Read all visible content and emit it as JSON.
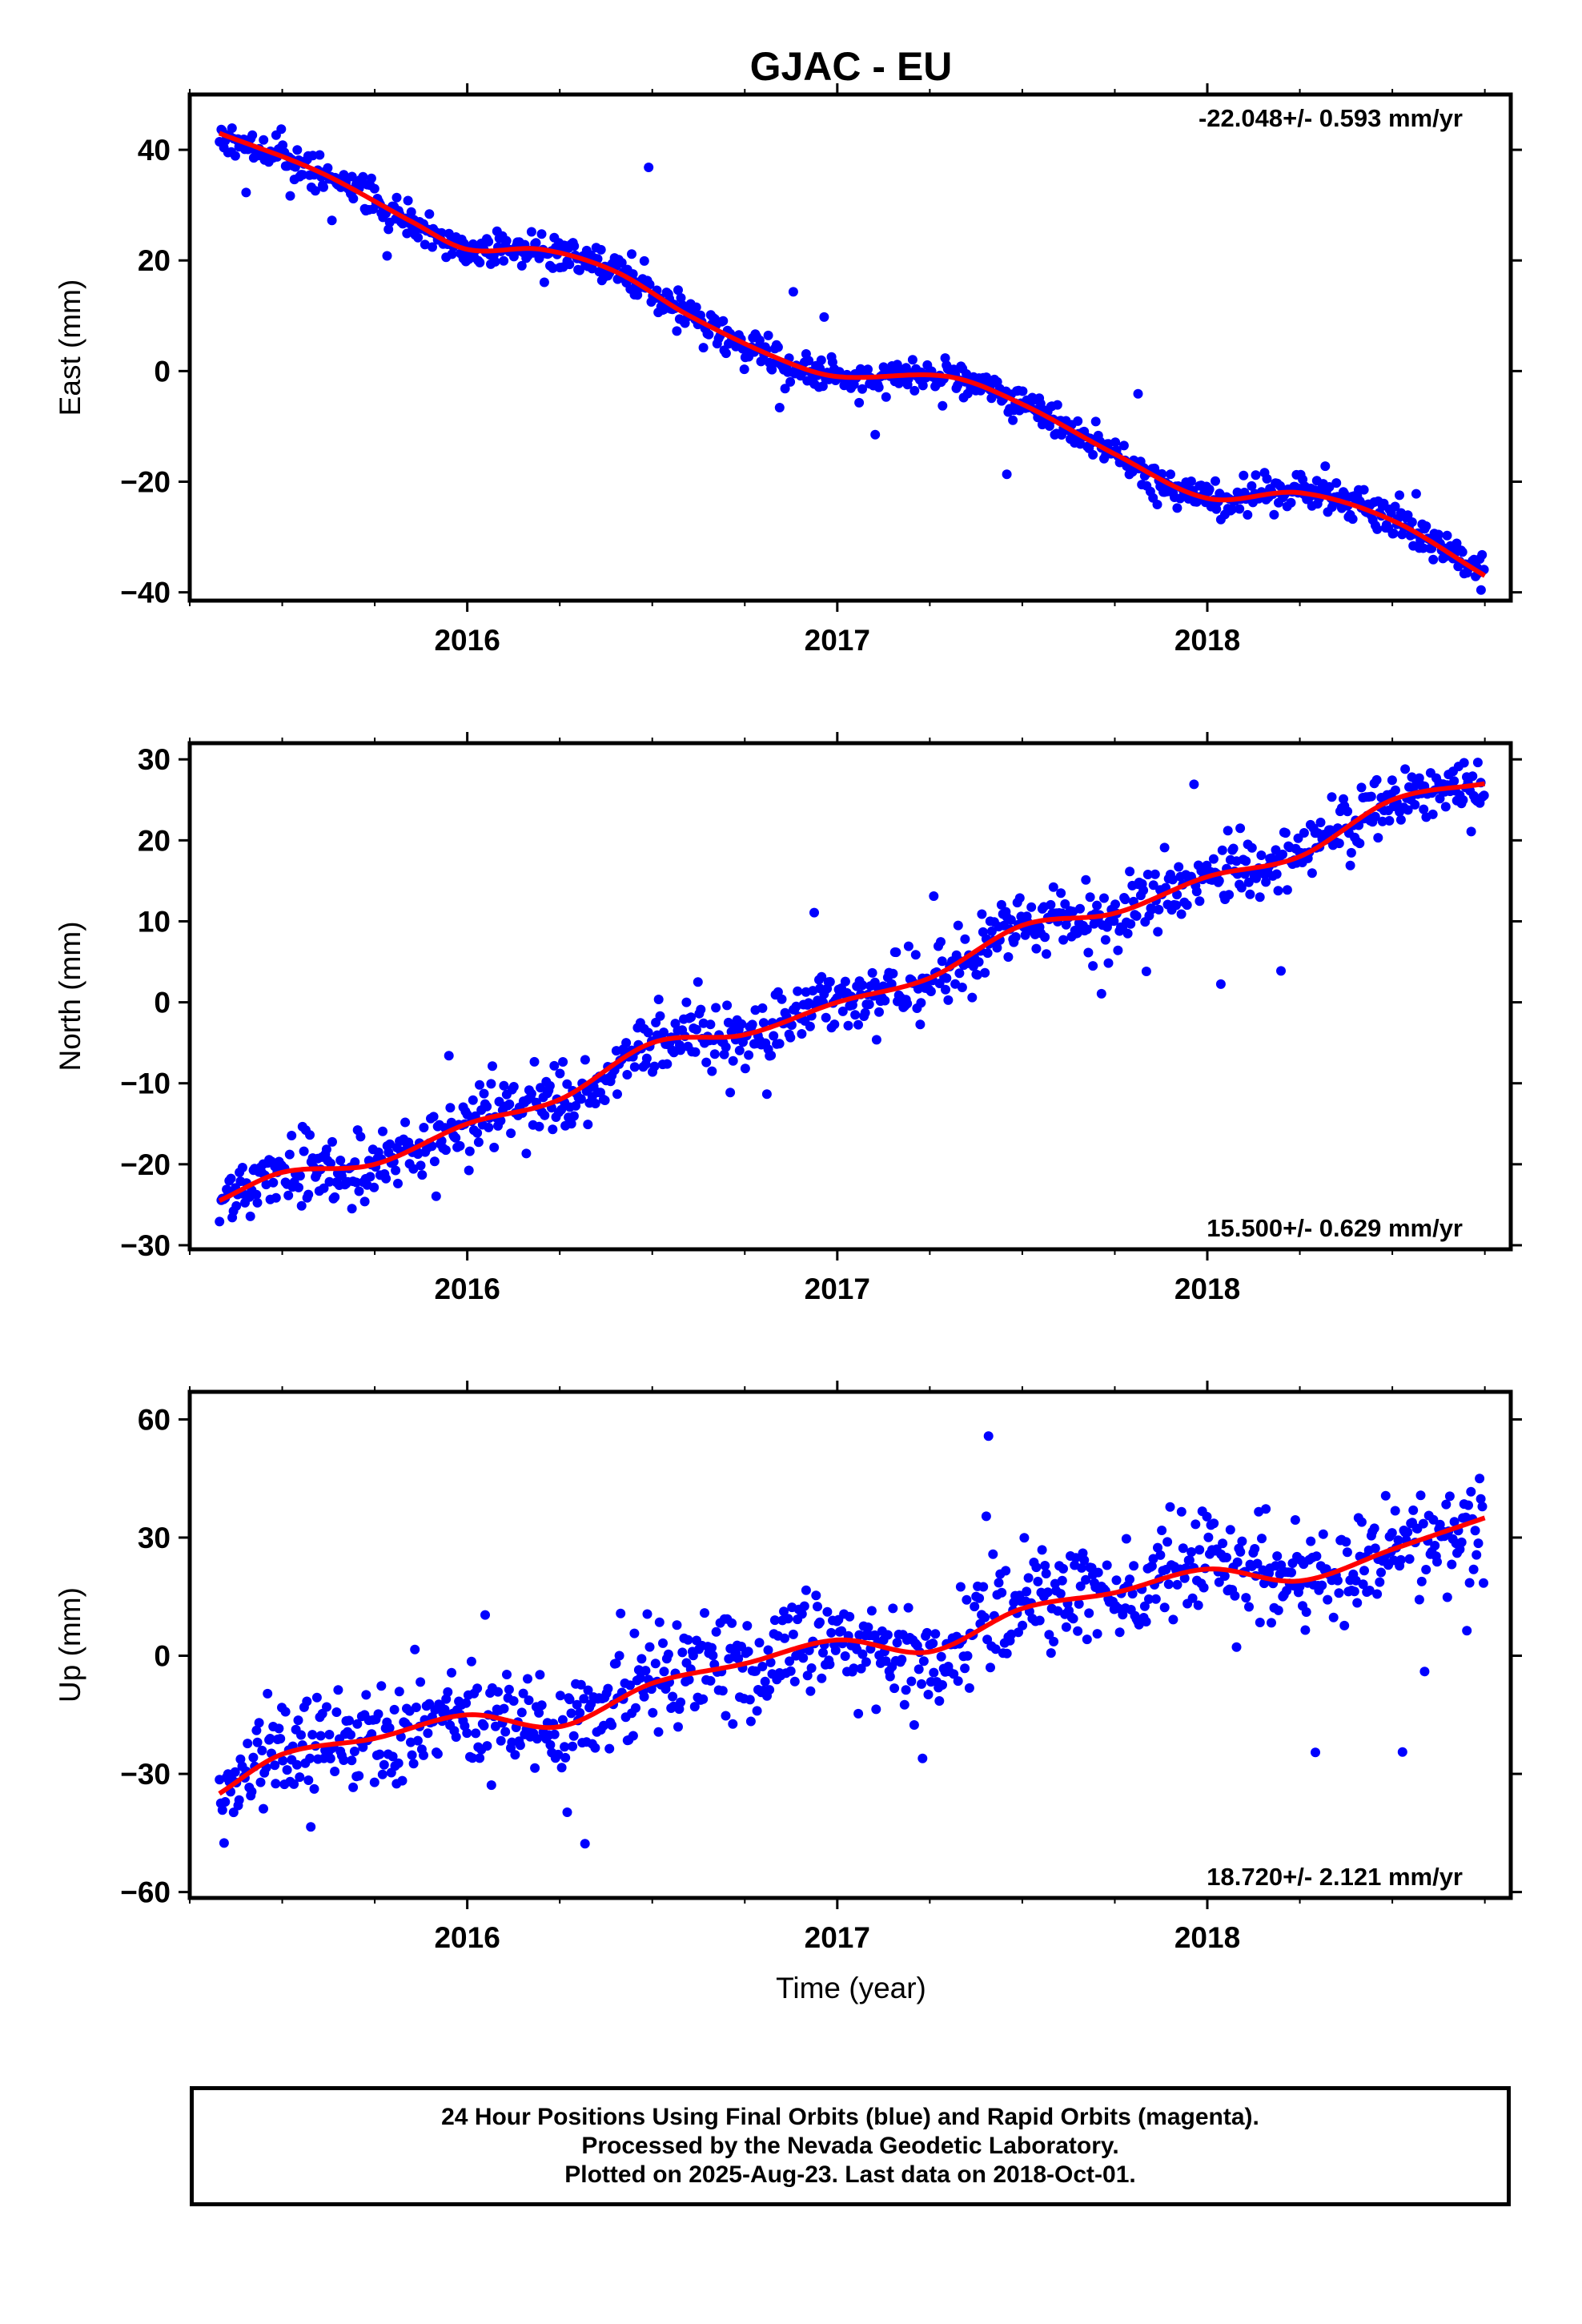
{
  "page": {
    "title": "GJAC - EU",
    "xlabel": "Time (year)",
    "footer_lines": [
      "24 Hour Positions Using Final Orbits (blue) and Rapid Orbits (magenta).",
      "Processed by the Nevada Geodetic Laboratory.",
      "Plotted on 2025-Aug-23. Last data on 2018-Oct-01."
    ]
  },
  "colors": {
    "points": "#0000ff",
    "fit": "#ff0000",
    "frame": "#000000"
  },
  "chart_data": [
    {
      "type": "scatter",
      "ylabel": "East (mm)",
      "rate_label": "-22.048+/- 0.593 mm/yr",
      "rate_position": "top-right",
      "xlim": [
        2015.25,
        2018.82
      ],
      "ylim": [
        -41.5,
        50
      ],
      "xticks": [
        2016,
        2017,
        2018
      ],
      "xtick_labels": [
        "2016",
        "2017",
        "2018"
      ],
      "yticks": [
        -40,
        -20,
        0,
        20,
        40
      ],
      "ytick_labels": [
        "−40",
        "−20",
        "0",
        "20",
        "40"
      ],
      "series": [
        {
          "kind": "points",
          "start": 2015.33,
          "end": 2018.75,
          "count": 900,
          "noise": 1.6,
          "outlier_rate": 0.03,
          "outlier_scale": 5,
          "seed": 11
        },
        {
          "kind": "fit"
        }
      ],
      "fit_knots": {
        "x": [
          2015.33,
          2015.6,
          2015.85,
          2016.0,
          2016.2,
          2016.4,
          2016.6,
          2016.85,
          2017.0,
          2017.3,
          2017.5,
          2017.75,
          2018.0,
          2018.25,
          2018.5,
          2018.75
        ],
        "y": [
          43,
          36,
          27,
          22,
          22,
          18,
          10,
          2,
          -1,
          -1,
          -6,
          -15,
          -23,
          -22,
          -27,
          -37
        ]
      }
    },
    {
      "type": "scatter",
      "ylabel": "North (mm)",
      "rate_label": "15.500+/- 0.629 mm/yr",
      "rate_position": "bottom-right",
      "xlim": [
        2015.25,
        2018.82
      ],
      "ylim": [
        -30.5,
        32
      ],
      "xticks": [
        2016,
        2017,
        2018
      ],
      "xtick_labels": [
        "2016",
        "2017",
        "2018"
      ],
      "yticks": [
        -30,
        -20,
        -10,
        0,
        10,
        20,
        30
      ],
      "ytick_labels": [
        "−30",
        "−20",
        "−10",
        "0",
        "10",
        "20",
        "30"
      ],
      "series": [
        {
          "kind": "points",
          "start": 2015.33,
          "end": 2018.75,
          "count": 900,
          "noise": 2.0,
          "outlier_rate": 0.02,
          "outlier_scale": 4,
          "seed": 23
        },
        {
          "kind": "fit"
        }
      ],
      "fit_knots": {
        "x": [
          2015.33,
          2015.5,
          2015.75,
          2016.0,
          2016.25,
          2016.5,
          2016.75,
          2017.0,
          2017.25,
          2017.5,
          2017.75,
          2018.0,
          2018.25,
          2018.5,
          2018.75
        ],
        "y": [
          -24.5,
          -21,
          -20,
          -15,
          -12,
          -5,
          -4,
          0,
          3,
          9.5,
          11,
          15.5,
          18,
          25,
          27
        ]
      }
    },
    {
      "type": "scatter",
      "ylabel": "Up (mm)",
      "rate_label": "18.720+/- 2.121 mm/yr",
      "rate_position": "bottom-right",
      "xlim": [
        2015.25,
        2018.82
      ],
      "ylim": [
        -61.5,
        67
      ],
      "xticks": [
        2016,
        2017,
        2018
      ],
      "xtick_labels": [
        "2016",
        "2017",
        "2018"
      ],
      "yticks": [
        -60,
        -30,
        0,
        30,
        60
      ],
      "ytick_labels": [
        "−60",
        "−30",
        "0",
        "30",
        "60"
      ],
      "series": [
        {
          "kind": "points",
          "start": 2015.33,
          "end": 2018.75,
          "count": 900,
          "noise": 6.5,
          "outlier_rate": 0.03,
          "outlier_scale": 3,
          "seed": 37
        },
        {
          "kind": "fit"
        }
      ],
      "fit_knots": {
        "x": [
          2015.33,
          2015.5,
          2015.75,
          2016.0,
          2016.25,
          2016.5,
          2016.75,
          2017.0,
          2017.25,
          2017.5,
          2017.75,
          2018.0,
          2018.25,
          2018.5,
          2018.75
        ],
        "y": [
          -35,
          -25,
          -21,
          -15,
          -18,
          -7,
          -2,
          4,
          1,
          12,
          16,
          22,
          19,
          27,
          35
        ]
      }
    }
  ]
}
